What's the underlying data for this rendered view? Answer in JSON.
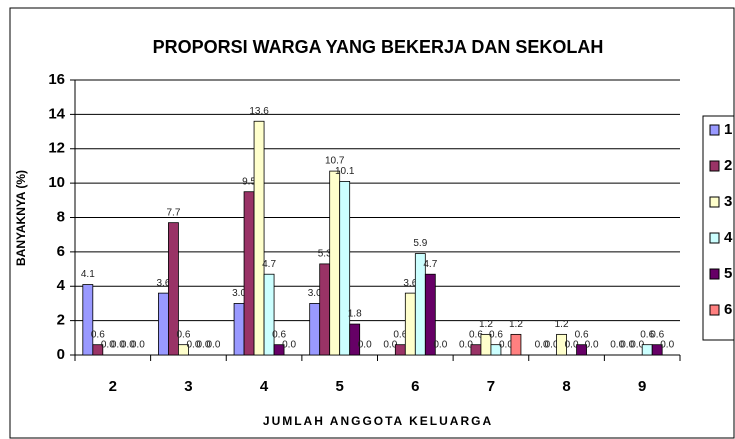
{
  "chart_data": {
    "type": "bar",
    "title": "PROPORSI WARGA YANG BEKERJA DAN SEKOLAH",
    "x_label": "JUMLAH ANGGOTA KELUARGA",
    "y_label": "BANYAKNYA (%)",
    "categories": [
      "2",
      "3",
      "4",
      "5",
      "6",
      "7",
      "8",
      "9"
    ],
    "series": [
      {
        "name": "1",
        "color": "#9999ff",
        "values": [
          4.1,
          3.6,
          3.0,
          3.0,
          0.0,
          0.0,
          0.0,
          0.0
        ],
        "value_labels": [
          "4.1",
          "3.6",
          "3.0",
          "3.0",
          "0.0",
          "0.0",
          "0.0",
          "0.0"
        ]
      },
      {
        "name": "2",
        "color": "#993366",
        "values": [
          0.6,
          7.7,
          9.5,
          5.3,
          0.6,
          0.6,
          0.0,
          0.0
        ],
        "value_labels": [
          "0.6",
          "7.7",
          "9.5",
          "5.3",
          "0.6",
          "0.6",
          "0.0",
          "0.0"
        ]
      },
      {
        "name": "3",
        "color": "#ffffcc",
        "values": [
          0.0,
          0.6,
          13.6,
          10.7,
          3.6,
          1.2,
          1.2,
          0.0
        ],
        "value_labels": [
          "0.0",
          "0.6",
          "13.6",
          "10.7",
          "3.6",
          "1.2",
          "1.2",
          "0.0"
        ]
      },
      {
        "name": "4",
        "color": "#ccffff",
        "values": [
          0.0,
          0.0,
          4.7,
          10.1,
          5.9,
          0.6,
          0.0,
          0.6
        ],
        "value_labels": [
          "0.0",
          "0.0",
          "4.7",
          "10.1",
          "5.9",
          "0.6",
          "0.0",
          "0.6"
        ]
      },
      {
        "name": "5",
        "color": "#660066",
        "values": [
          0.0,
          0.0,
          0.6,
          1.8,
          4.7,
          0.0,
          0.6,
          0.6
        ],
        "value_labels": [
          "0.0",
          "0.0",
          "0.6",
          "1.8",
          "4.7",
          "0.0",
          "0.6",
          "0.6"
        ]
      },
      {
        "name": "6",
        "color": "#ff8080",
        "values": [
          0.0,
          0.0,
          0.0,
          0.0,
          0.0,
          1.2,
          0.0,
          0.0
        ],
        "value_labels": [
          "0.0",
          "0.0",
          "0.0",
          "0.0",
          "0.0",
          "1.2",
          "0.0",
          "0.0"
        ]
      }
    ],
    "ylim": [
      0,
      16
    ],
    "yticks": [
      0,
      2,
      4,
      6,
      8,
      10,
      12,
      14,
      16
    ],
    "grid": true,
    "legend": "right"
  }
}
